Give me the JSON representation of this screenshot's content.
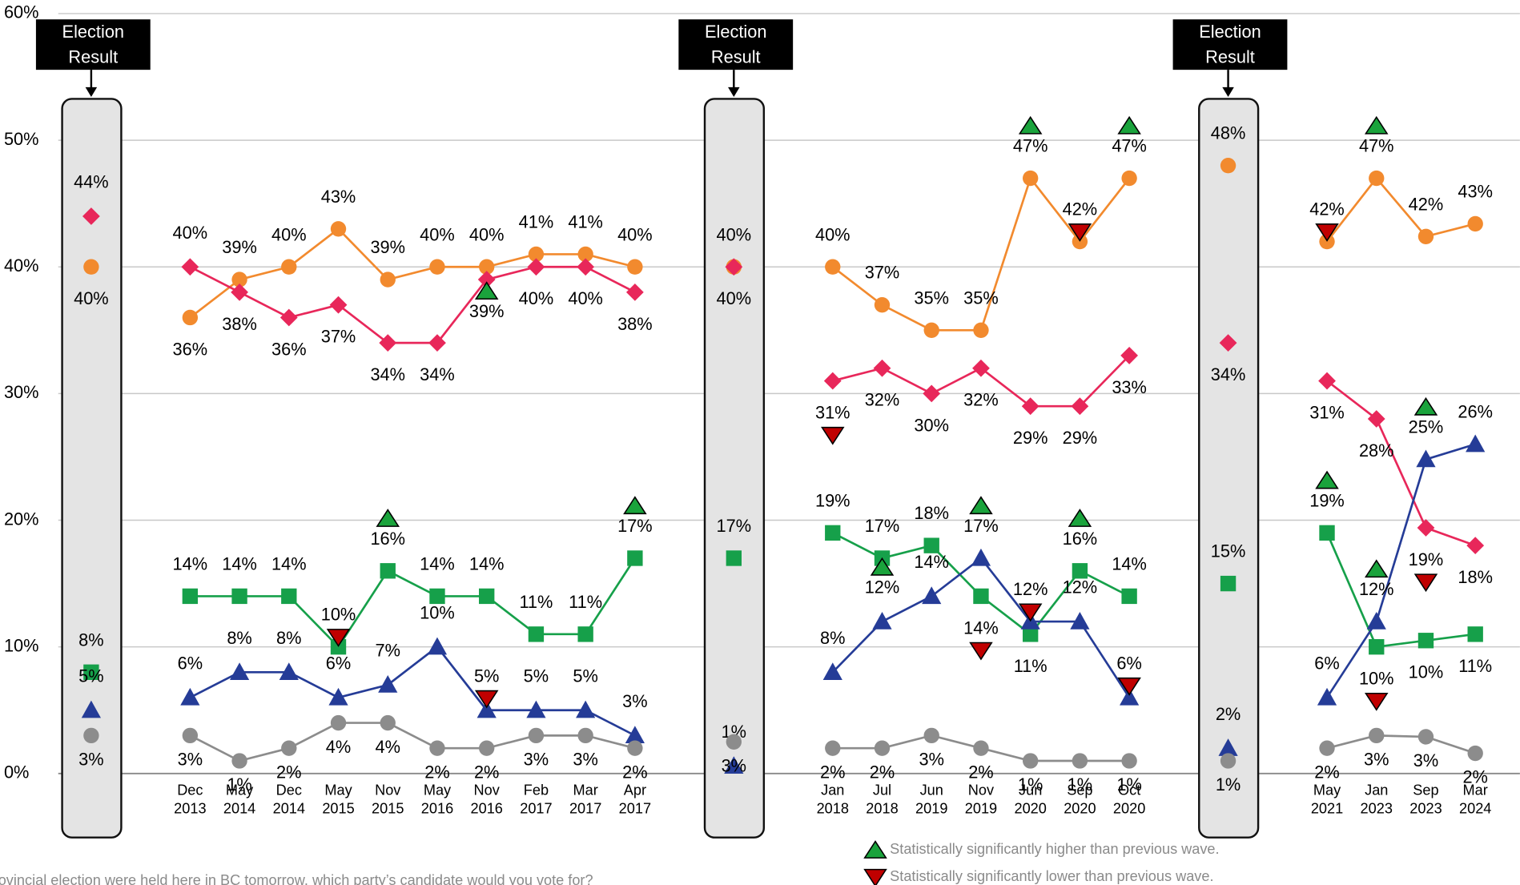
{
  "chart_data": {
    "type": "line",
    "categories": [
      null,
      null,
      "Dec 2013",
      "May 2014",
      "Dec 2014",
      "May 2015",
      "Nov 2015",
      "May 2016",
      "Nov 2016",
      "Feb 2017",
      "Mar 2017",
      "Apr 2017",
      null,
      null,
      null,
      "Jan 2018",
      "Jul 2018",
      "Jun 2019",
      "Nov 2019",
      "Jun 2020",
      "Sep 2020",
      "Oct 2020",
      null,
      null,
      null,
      "May 2021",
      "Jan 2023",
      "Sep 2023",
      "Mar 2024"
    ],
    "ylim": [
      0,
      60
    ],
    "yticks": [
      {
        "value": 0,
        "label": "0%"
      },
      {
        "value": 10,
        "label": "10%"
      },
      {
        "value": 20,
        "label": "20%"
      },
      {
        "value": 30,
        "label": "30%"
      },
      {
        "value": 40,
        "label": "40%"
      },
      {
        "value": 50,
        "label": "50%"
      },
      {
        "value": 60,
        "label": "60%"
      }
    ],
    "grid": true,
    "annotations": [
      "Election Result",
      "Election Result",
      "Election Result"
    ],
    "question": "ovincial election were held here in BC tomorrow, which party’s candidate would you vote for?",
    "significance_legend": {
      "higher": {
        "label": "Statistically significantly higher than previous wave.",
        "color": "#1aa33c"
      },
      "lower": {
        "label": "Statistically significantly lower than previous wave.",
        "color": "#c00000"
      }
    },
    "series": [
      {
        "color": "#f28a2e",
        "marker": "circle",
        "values": [
          40,
          null,
          36,
          39,
          40,
          43,
          39,
          40,
          40,
          41,
          41,
          40,
          null,
          40,
          null,
          40,
          37,
          35,
          35,
          47,
          42,
          47,
          null,
          48,
          null,
          42,
          47,
          42.4,
          43.4
        ],
        "value_labels": [
          "40%",
          null,
          "36%",
          "39%",
          "40%",
          "43%",
          "39%",
          "40%",
          "40%",
          "41%",
          "41%",
          "40%",
          null,
          "40%",
          null,
          "40%",
          "37%",
          "35%",
          "35%",
          "47%",
          "42%",
          "47%",
          null,
          "48%",
          null,
          "42%",
          "47%",
          "42%",
          "43%"
        ],
        "significance": [
          null,
          null,
          null,
          null,
          null,
          null,
          null,
          null,
          null,
          null,
          null,
          null,
          null,
          null,
          null,
          null,
          null,
          null,
          null,
          "higher",
          "lower",
          "higher",
          null,
          null,
          null,
          "lower",
          "higher",
          null,
          null
        ]
      },
      {
        "color": "#e8275a",
        "marker": "diamond",
        "values": [
          44,
          null,
          40,
          38,
          36,
          37,
          34,
          34,
          39,
          40,
          40,
          38,
          null,
          40,
          null,
          31,
          32,
          30,
          32,
          29,
          29,
          33,
          null,
          34,
          null,
          31,
          28,
          19.4,
          18
        ],
        "value_labels": [
          "44%",
          null,
          "40%",
          "38%",
          "36%",
          "37%",
          "34%",
          "34%",
          "39%",
          "40%",
          "40%",
          "38%",
          null,
          "40%",
          null,
          "31%",
          "32%",
          "30%",
          "32%",
          "29%",
          "29%",
          "33%",
          null,
          "34%",
          null,
          "31%",
          "28%",
          "19%",
          "18%"
        ],
        "significance": [
          null,
          null,
          null,
          null,
          null,
          null,
          null,
          null,
          "higher",
          null,
          null,
          null,
          null,
          null,
          null,
          "lower",
          null,
          null,
          null,
          null,
          null,
          null,
          null,
          null,
          null,
          null,
          null,
          "lower",
          null
        ]
      },
      {
        "color": "#16a04a",
        "marker": "square",
        "values": [
          8,
          null,
          14,
          14,
          14,
          10,
          16,
          14,
          14,
          11,
          11,
          17,
          null,
          17,
          null,
          19,
          17,
          18,
          14,
          11,
          16,
          14,
          null,
          15,
          null,
          19,
          10,
          10.5,
          11
        ],
        "value_labels": [
          "8%",
          null,
          "14%",
          "14%",
          "14%",
          "10%",
          "16%",
          "14%",
          "14%",
          "11%",
          "11%",
          "17%",
          null,
          "17%",
          null,
          "19%",
          "17%",
          "18%",
          "14%",
          "11%",
          "16%",
          "14%",
          null,
          "15%",
          null,
          "19%",
          "10%",
          "10%",
          "11%"
        ],
        "significance": [
          null,
          null,
          null,
          null,
          null,
          "lower",
          "higher",
          null,
          null,
          null,
          null,
          "higher",
          null,
          null,
          null,
          null,
          null,
          null,
          "lower",
          null,
          "higher",
          null,
          null,
          null,
          null,
          "higher",
          "lower",
          null,
          null
        ]
      },
      {
        "color": "#253c97",
        "marker": "triangle",
        "values": [
          5,
          null,
          6,
          8,
          8,
          6,
          7,
          10,
          5,
          5,
          5,
          3,
          null,
          0.6,
          null,
          8,
          12,
          14,
          17,
          12,
          12,
          6,
          null,
          2,
          null,
          6,
          12,
          24.8,
          26
        ],
        "value_labels": [
          "5%",
          null,
          "6%",
          "8%",
          "8%",
          "6%",
          "7%",
          "10%",
          "5%",
          "5%",
          "5%",
          "3%",
          null,
          "1%",
          null,
          "8%",
          "12%",
          "14%",
          "17%",
          "12%",
          "12%",
          "6%",
          null,
          "2%",
          null,
          "6%",
          "12%",
          "25%",
          "26%"
        ],
        "significance": [
          null,
          null,
          null,
          null,
          null,
          null,
          null,
          null,
          "lower",
          null,
          null,
          null,
          null,
          null,
          null,
          null,
          "higher",
          null,
          "higher",
          "lower",
          null,
          "lower",
          null,
          null,
          null,
          null,
          "higher",
          "higher",
          null
        ]
      },
      {
        "color": "#8c8c8c",
        "marker": "circle",
        "values": [
          3,
          null,
          3,
          1,
          2,
          4,
          4,
          2,
          2,
          3,
          3,
          2,
          null,
          2.5,
          null,
          2,
          2,
          3,
          2,
          1,
          1,
          1,
          null,
          1,
          null,
          2,
          3,
          2.9,
          1.6
        ],
        "value_labels": [
          "3%",
          null,
          "3%",
          "1%",
          "2%",
          "4%",
          "4%",
          "2%",
          "2%",
          "3%",
          "3%",
          "2%",
          null,
          "3%",
          null,
          "2%",
          "2%",
          "3%",
          "2%",
          "1%",
          "1%",
          "1%",
          null,
          "1%",
          null,
          "2%",
          "3%",
          "3%",
          "2%"
        ]
      }
    ]
  }
}
